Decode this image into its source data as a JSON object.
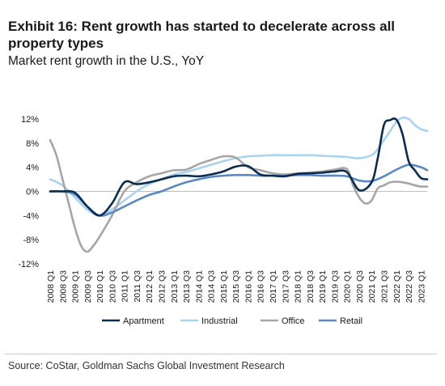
{
  "header": {
    "title": "Exhibit 16: Rent growth has started to decelerate across all property types",
    "subtitle": "Market rent growth in the U.S., YoY"
  },
  "footer": {
    "source": "Source: CoStar, Goldman Sachs Global Investment Research"
  },
  "chart_data": {
    "type": "line",
    "title": "",
    "xlabel": "",
    "ylabel": "",
    "ylim": [
      -12,
      12
    ],
    "yticks": [
      -12,
      -8,
      -4,
      0,
      4,
      8,
      12
    ],
    "ytick_labels": [
      "-12%",
      "-8%",
      "-4%",
      "0%",
      "4%",
      "8%",
      "12%"
    ],
    "x_labels": [
      "2008 Q1",
      "2008 Q3",
      "2009 Q1",
      "2009 Q3",
      "2010 Q1",
      "2010 Q3",
      "2011 Q1",
      "2011 Q3",
      "2012 Q1",
      "2012 Q3",
      "2013 Q1",
      "2013 Q3",
      "2014 Q1",
      "2014 Q3",
      "2015 Q1",
      "2015 Q3",
      "2016 Q1",
      "2016 Q3",
      "2017 Q1",
      "2017 Q3",
      "2018 Q1",
      "2018 Q3",
      "2019 Q1",
      "2019 Q3",
      "2020 Q1",
      "2020 Q3",
      "2021 Q1",
      "2021 Q3",
      "2022 Q1",
      "2022 Q3",
      "2023 Q1"
    ],
    "grid": false,
    "legend_position": "bottom",
    "series": [
      {
        "name": "Apartment",
        "color": "#0b2c4f",
        "x": [
          2008.0,
          2008.5,
          2009.0,
          2009.5,
          2010.0,
          2010.5,
          2011.0,
          2011.5,
          2012.0,
          2012.5,
          2013.0,
          2013.5,
          2014.0,
          2014.5,
          2015.0,
          2015.5,
          2016.0,
          2016.5,
          2017.0,
          2017.5,
          2018.0,
          2018.5,
          2019.0,
          2019.5,
          2020.0,
          2020.5,
          2021.0,
          2021.25,
          2021.5,
          2021.75,
          2022.0,
          2022.25,
          2022.5,
          2022.75,
          2023.0,
          2023.25
        ],
        "y": [
          0.0,
          0.0,
          -0.2,
          -2.5,
          -4.0,
          -2.0,
          1.5,
          1.2,
          1.5,
          2.0,
          2.5,
          2.6,
          2.5,
          2.8,
          3.3,
          4.1,
          4.2,
          2.8,
          2.6,
          2.5,
          2.9,
          3.0,
          3.1,
          3.3,
          3.2,
          0.2,
          1.5,
          5.5,
          11.0,
          11.8,
          11.9,
          9.5,
          5.0,
          3.5,
          2.2,
          2.0
        ]
      },
      {
        "name": "Industrial",
        "color": "#a8d4f0",
        "x": [
          2008.0,
          2008.5,
          2009.0,
          2009.5,
          2010.0,
          2010.5,
          2011.0,
          2011.5,
          2012.0,
          2012.5,
          2013.0,
          2013.5,
          2014.0,
          2014.5,
          2015.0,
          2015.5,
          2016.0,
          2016.5,
          2017.0,
          2017.5,
          2018.0,
          2018.5,
          2019.0,
          2019.5,
          2020.0,
          2020.5,
          2021.0,
          2021.25,
          2021.5,
          2021.75,
          2022.0,
          2022.25,
          2022.5,
          2022.75,
          2023.0,
          2023.25
        ],
        "y": [
          2.0,
          1.0,
          -1.0,
          -3.0,
          -4.0,
          -3.0,
          -1.5,
          0.0,
          1.2,
          2.0,
          2.8,
          3.2,
          3.8,
          4.4,
          5.0,
          5.5,
          5.8,
          5.9,
          6.0,
          6.0,
          6.0,
          6.0,
          5.9,
          5.8,
          5.7,
          5.5,
          6.0,
          7.0,
          8.5,
          10.0,
          11.5,
          12.2,
          12.0,
          11.0,
          10.3,
          10.0
        ]
      },
      {
        "name": "Office",
        "color": "#a6a6a6",
        "x": [
          2008.0,
          2008.25,
          2008.5,
          2008.75,
          2009.0,
          2009.25,
          2009.5,
          2009.75,
          2010.0,
          2010.5,
          2011.0,
          2011.5,
          2012.0,
          2012.5,
          2013.0,
          2013.5,
          2014.0,
          2014.5,
          2015.0,
          2015.5,
          2016.0,
          2016.5,
          2017.0,
          2017.5,
          2018.0,
          2018.5,
          2019.0,
          2019.5,
          2020.0,
          2020.25,
          2020.5,
          2020.75,
          2021.0,
          2021.25,
          2021.5,
          2021.75,
          2022.0,
          2022.25,
          2022.5,
          2022.75,
          2023.0,
          2023.25
        ],
        "y": [
          8.5,
          6.0,
          2.0,
          -2.0,
          -6.0,
          -9.0,
          -10.0,
          -9.0,
          -7.5,
          -4.0,
          0.0,
          1.5,
          2.5,
          3.0,
          3.5,
          3.6,
          4.5,
          5.2,
          5.8,
          5.6,
          4.0,
          3.5,
          3.0,
          2.8,
          3.0,
          3.1,
          3.3,
          3.6,
          3.7,
          1.0,
          -1.0,
          -2.0,
          -1.5,
          0.5,
          1.0,
          1.5,
          1.6,
          1.5,
          1.3,
          1.0,
          0.8,
          0.8
        ]
      },
      {
        "name": "Retail",
        "color": "#5b87c5",
        "x": [
          2008.0,
          2008.5,
          2009.0,
          2009.5,
          2010.0,
          2010.5,
          2011.0,
          2011.5,
          2012.0,
          2012.5,
          2013.0,
          2013.5,
          2014.0,
          2014.5,
          2015.0,
          2015.5,
          2016.0,
          2016.5,
          2017.0,
          2017.5,
          2018.0,
          2018.5,
          2019.0,
          2019.5,
          2020.0,
          2020.5,
          2021.0,
          2021.5,
          2022.0,
          2022.5,
          2023.0,
          2023.25
        ],
        "y": [
          0.0,
          0.0,
          -0.5,
          -2.5,
          -4.0,
          -3.5,
          -2.5,
          -1.5,
          -0.6,
          0.0,
          0.8,
          1.5,
          2.0,
          2.4,
          2.6,
          2.7,
          2.7,
          2.6,
          2.6,
          2.6,
          2.7,
          2.7,
          2.6,
          2.6,
          2.5,
          1.8,
          1.7,
          2.5,
          3.6,
          4.4,
          4.0,
          3.5
        ]
      }
    ]
  }
}
